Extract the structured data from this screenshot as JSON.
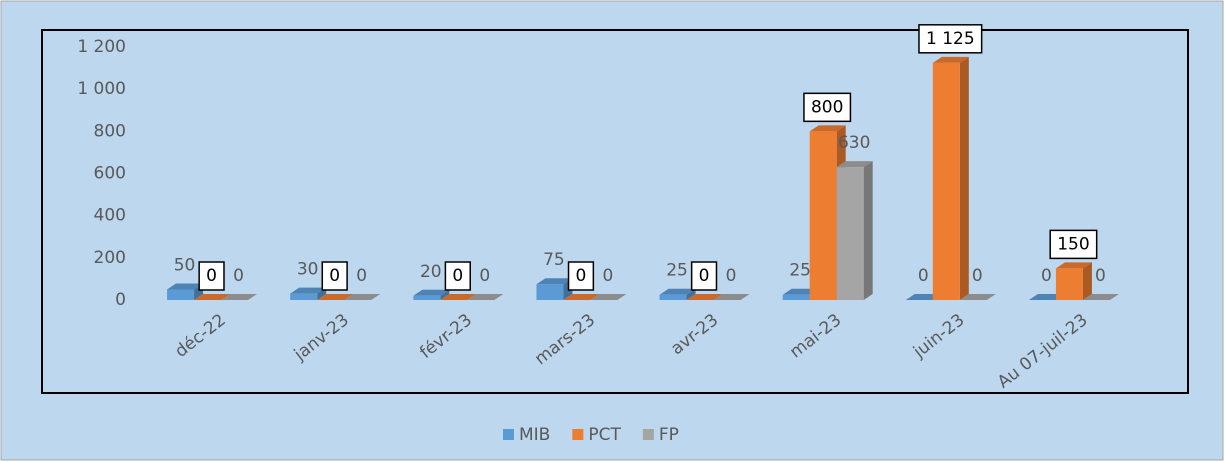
{
  "chart_data": {
    "type": "bar3d",
    "categories": [
      "déc-22",
      "janv-23",
      "févr-23",
      "mars-23",
      "avr-23",
      "mai-23",
      "juin-23",
      "Au 07-juil-23"
    ],
    "series": [
      {
        "name": "MIB",
        "color": "#5b9bd5",
        "values": [
          50,
          30,
          20,
          75,
          25,
          25,
          0,
          0
        ]
      },
      {
        "name": "PCT",
        "color": "#ed7d31",
        "values": [
          0,
          0,
          0,
          0,
          0,
          800,
          1125,
          150
        ],
        "value_labels": [
          "0",
          "0",
          "0",
          "0",
          "0",
          "800",
          "1 125",
          "150"
        ],
        "boxed_labels": true
      },
      {
        "name": "FP",
        "color": "#a5a5a5",
        "values": [
          0,
          0,
          0,
          0,
          0,
          630,
          0,
          0
        ]
      }
    ],
    "ylim": [
      0,
      1200
    ],
    "yticks": [
      0,
      200,
      400,
      600,
      800,
      {
        "value": 1000,
        "label": "1 000"
      },
      {
        "value": 1200,
        "label": "1 200"
      }
    ],
    "legend": "bottom"
  }
}
